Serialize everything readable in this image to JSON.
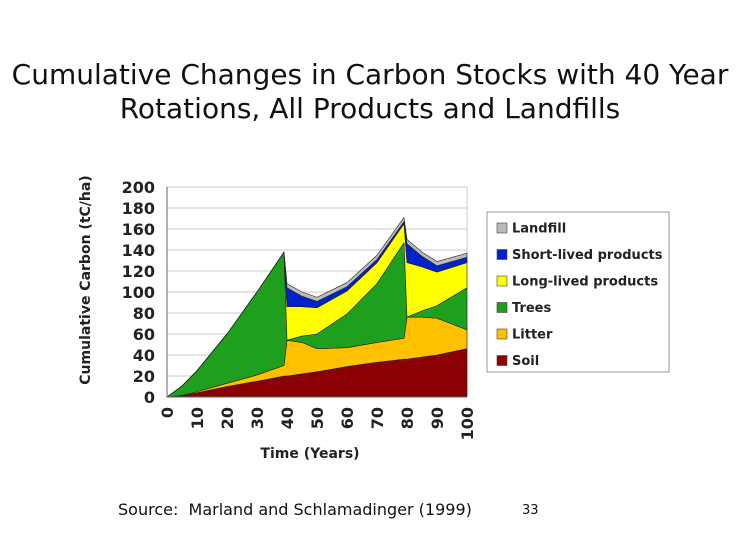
{
  "slide": {
    "title": "Cumulative Changes in Carbon Stocks with 40 Year Rotations, All Products and Landfills",
    "source": "Source:  Marland and Schlamadinger (1999)",
    "slide_number": "33"
  },
  "chart_data": {
    "type": "area",
    "stacked": true,
    "title": "",
    "xlabel": "Time (Years)",
    "ylabel": "Cumulative Carbon (tC/ha)",
    "xlim": [
      0,
      100
    ],
    "ylim": [
      0,
      200
    ],
    "xticks": [
      "0",
      "10",
      "20",
      "30",
      "40",
      "50",
      "60",
      "70",
      "80",
      "90",
      "100"
    ],
    "yticks": [
      "0",
      "20",
      "40",
      "60",
      "80",
      "100",
      "120",
      "140",
      "160",
      "180",
      "200"
    ],
    "grid": true,
    "legend_position": "right",
    "x": [
      0,
      5,
      10,
      20,
      30,
      39,
      40,
      45,
      50,
      60,
      70,
      79,
      80,
      85,
      90,
      100
    ],
    "series": [
      {
        "name": "Soil",
        "color": "#8b0000",
        "values": [
          0,
          1,
          4,
          10,
          15,
          20,
          20,
          22,
          24,
          29,
          33,
          36,
          36,
          38,
          40,
          46
        ]
      },
      {
        "name": "Litter",
        "color": "#ffc000",
        "values": [
          0,
          0.5,
          1,
          3,
          6,
          10,
          34,
          30,
          22,
          18,
          19,
          20,
          40,
          38,
          35,
          18
        ]
      },
      {
        "name": "Trees",
        "color": "#1ea01e",
        "values": [
          0,
          9,
          20,
          47,
          79,
          108,
          0,
          6,
          14,
          32,
          56,
          91,
          0,
          6,
          12,
          40
        ]
      },
      {
        "name": "Long-lived products",
        "color": "#ffff00",
        "values": [
          0,
          0,
          0,
          0,
          0,
          0,
          32,
          28,
          25,
          22,
          20,
          18,
          52,
          42,
          32,
          24
        ]
      },
      {
        "name": "Short-lived products",
        "color": "#0022cc",
        "values": [
          0,
          0,
          0,
          0,
          0,
          0,
          18,
          10,
          6,
          4,
          3,
          2,
          18,
          10,
          6,
          5
        ]
      },
      {
        "name": "Landfill",
        "color": "#bbbbbb",
        "values": [
          0,
          0,
          0,
          0,
          0,
          0,
          4,
          4,
          4,
          4,
          4,
          4,
          4,
          4,
          4,
          4
        ]
      }
    ],
    "legend_order": [
      "Landfill",
      "Short-lived products",
      "Long-lived products",
      "Trees",
      "Litter",
      "Soil"
    ]
  }
}
